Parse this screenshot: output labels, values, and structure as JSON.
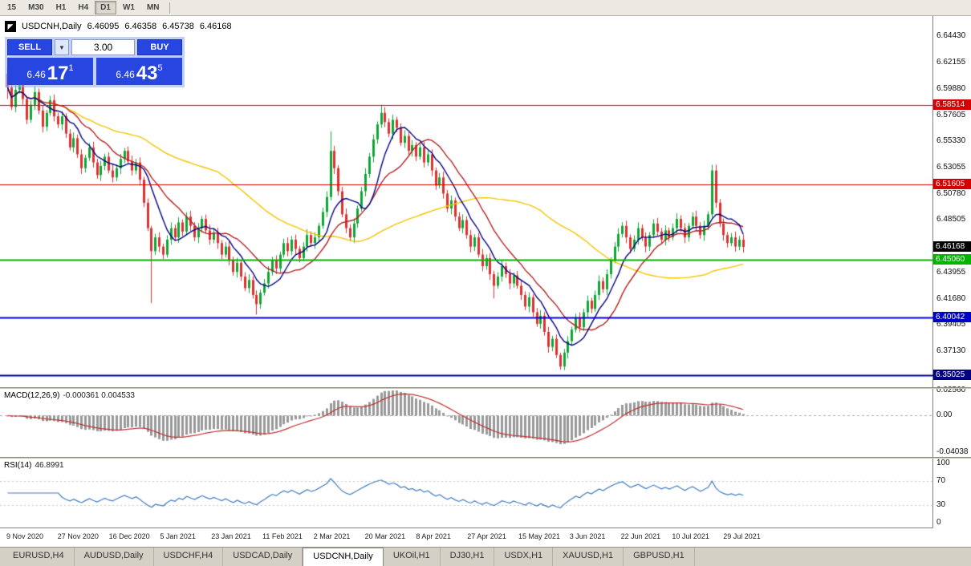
{
  "toolbar": {
    "timeframes": [
      "15",
      "M30",
      "H1",
      "H4",
      "D1",
      "W1",
      "MN"
    ],
    "active": "D1"
  },
  "chart_header": {
    "symbol_title": "USDCNH,Daily",
    "open": "6.46095",
    "high": "6.46358",
    "low": "6.45738",
    "close": "6.46168"
  },
  "trade_panel": {
    "sell_label": "SELL",
    "buy_label": "BUY",
    "volume": "3.00",
    "sell_price_small": "6.46",
    "sell_price_big": "17",
    "sell_price_sup": "1",
    "buy_price_small": "6.46",
    "buy_price_big": "43",
    "buy_price_sup": "5"
  },
  "price_axis": {
    "ticks": [
      6.6443,
      6.62155,
      6.5988,
      6.57605,
      6.5533,
      6.53055,
      6.5078,
      6.48505,
      6.4623,
      6.43955,
      6.4168,
      6.39405,
      6.3713,
      6.34855
    ],
    "tags": [
      {
        "label": "6.58514",
        "value": 6.58514,
        "bg": "#d40000",
        "line": true,
        "lw": 1.2
      },
      {
        "label": "6.51605",
        "value": 6.51605,
        "bg": "#d40000",
        "line": true,
        "lw": 1.2
      },
      {
        "label": "6.46168",
        "value": 6.46168,
        "bg": "#000000",
        "line": false,
        "lw": 0
      },
      {
        "label": "6.45060",
        "value": 6.4506,
        "bg": "#00b400",
        "line": true,
        "lw": 2
      },
      {
        "label": "6.40042",
        "value": 6.40042,
        "bg": "#0000c8",
        "line": true,
        "lw": 2
      },
      {
        "label": "6.35025",
        "value": 6.35025,
        "bg": "#000080",
        "line": true,
        "lw": 2
      }
    ]
  },
  "indicators": {
    "macd": {
      "label": "MACD(12,26,9)",
      "values_text": "-0.000361 0.004533",
      "axis_labels": [
        "0.02560",
        "0.00",
        "-0.04038"
      ],
      "fast": 12,
      "slow": 26,
      "signal": 9,
      "bar_color": "#999999",
      "signal_color": "#c03030"
    },
    "rsi": {
      "label": "RSI(14)",
      "value_text": "46.8991",
      "axis_labels": [
        "100",
        "70",
        "30",
        "0"
      ],
      "period": 14,
      "levels": [
        30,
        70
      ],
      "line_color": "#3f7cc0"
    }
  },
  "date_axis": {
    "labels": [
      "9 Nov 2020",
      "27 Nov 2020",
      "16 Dec 2020",
      "5 Jan 2021",
      "23 Jan 2021",
      "11 Feb 2021",
      "2 Mar 2021",
      "20 Mar 2021",
      "8 Apr 2021",
      "27 Apr 2021",
      "15 May 2021",
      "3 Jun 2021",
      "22 Jun 2021",
      "10 Jul 2021",
      "29 Jul 2021"
    ]
  },
  "tabs": {
    "items": [
      "EURUSD,H4",
      "AUDUSD,Daily",
      "USDCHF,H4",
      "USDCAD,Daily",
      "USDCNH,Daily",
      "UKOil,H1",
      "DJ30,H1",
      "USDX,H1",
      "XAUUSD,H1",
      "GBPUSD,H1"
    ],
    "active": "USDCNH,Daily"
  },
  "chart_data": {
    "type": "candlestick",
    "symbol": "USDCNH",
    "timeframe": "Daily",
    "ylim": [
      6.34,
      6.662
    ],
    "up_color": "#0fa634",
    "down_color": "#df3131",
    "first_open": 6.612,
    "closes": [
      6.6,
      6.583,
      6.598,
      6.605,
      6.59,
      6.572,
      6.585,
      6.596,
      6.58,
      6.566,
      6.578,
      6.589,
      6.575,
      6.568,
      6.575,
      6.56,
      6.548,
      6.556,
      6.542,
      6.53,
      6.539,
      6.548,
      6.535,
      6.524,
      6.532,
      6.54,
      6.528,
      6.522,
      6.53,
      6.538,
      6.545,
      6.536,
      6.528,
      6.535,
      6.52,
      6.5,
      6.478,
      6.458,
      6.47,
      6.462,
      6.455,
      6.468,
      6.478,
      6.47,
      6.483,
      6.475,
      6.488,
      6.48,
      6.47,
      6.478,
      6.486,
      6.476,
      6.468,
      6.474,
      6.465,
      6.455,
      6.462,
      6.45,
      6.44,
      6.448,
      6.436,
      6.426,
      6.433,
      6.42,
      6.412,
      6.422,
      6.43,
      6.44,
      6.45,
      6.443,
      6.455,
      6.465,
      6.458,
      6.468,
      6.46,
      6.452,
      6.462,
      6.472,
      6.465,
      6.47,
      6.48,
      6.492,
      6.505,
      6.545,
      6.53,
      6.51,
      6.49,
      6.478,
      6.47,
      6.482,
      6.495,
      6.51,
      6.525,
      6.54,
      6.555,
      6.568,
      6.578,
      6.57,
      6.56,
      6.572,
      6.565,
      6.552,
      6.558,
      6.545,
      6.55,
      6.54,
      6.548,
      6.535,
      6.542,
      6.528,
      6.515,
      6.522,
      6.508,
      6.495,
      6.502,
      6.488,
      6.478,
      6.485,
      6.472,
      6.462,
      6.47,
      6.455,
      6.445,
      6.452,
      6.438,
      6.428,
      6.436,
      6.445,
      6.438,
      6.43,
      6.437,
      6.428,
      6.42,
      6.41,
      6.418,
      6.405,
      6.395,
      6.402,
      6.388,
      6.375,
      6.382,
      6.368,
      6.358,
      6.37,
      6.38,
      6.39,
      6.4,
      6.392,
      6.405,
      6.415,
      6.408,
      6.42,
      6.432,
      6.425,
      6.438,
      6.45,
      6.462,
      6.473,
      6.48,
      6.47,
      6.46,
      6.468,
      6.478,
      6.47,
      6.462,
      6.472,
      6.482,
      6.475,
      6.468,
      6.476,
      6.47,
      6.478,
      6.486,
      6.478,
      6.47,
      6.48,
      6.488,
      6.48,
      6.472,
      6.48,
      6.49,
      6.528,
      6.5,
      6.482,
      6.472,
      6.465,
      6.47,
      6.462,
      6.468,
      6.4617
    ],
    "wick_overrides": {
      "0": [
        6.618,
        6.59
      ],
      "37": [
        6.48,
        6.413
      ],
      "64": [
        6.424,
        6.403
      ],
      "83": [
        6.562,
        6.502
      ],
      "96": [
        6.585,
        6.565
      ],
      "125": [
        6.441,
        6.417
      ],
      "142": [
        6.37,
        6.3552
      ],
      "181": [
        6.533,
        6.487
      ]
    },
    "ma": [
      {
        "period": 55,
        "color": "#f5c400"
      },
      {
        "period": 16,
        "color": "#b22222"
      },
      {
        "period": 8,
        "color": "#000080"
      }
    ]
  }
}
